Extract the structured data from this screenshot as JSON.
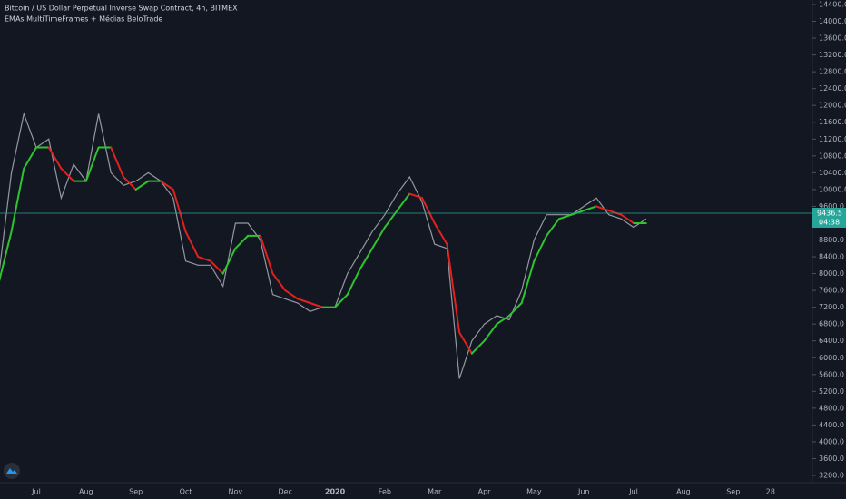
{
  "header": {
    "symbol": "Bitcoin / US Dollar Perpetual Inverse Swap Contract, 4h, BITMEX",
    "indicator": "EMAs MultiTimeFrames + Médias BeloTrade"
  },
  "chart_data": {
    "type": "line",
    "categories": [
      null,
      null,
      null,
      "Jul",
      null,
      null,
      null,
      "Aug",
      null,
      null,
      null,
      "Sep",
      null,
      null,
      null,
      "Oct",
      null,
      null,
      null,
      "Nov",
      null,
      null,
      null,
      "Dec",
      null,
      null,
      null,
      "2020",
      null,
      null,
      null,
      "Feb",
      null,
      null,
      null,
      "Mar",
      null,
      null,
      null,
      "Apr",
      null,
      null,
      null,
      "May",
      null,
      null,
      null,
      "Jun",
      null,
      null,
      null,
      "Jul",
      null,
      null,
      null,
      "Aug",
      null,
      null,
      null,
      "Sep",
      null,
      null,
      "28",
      null,
      null,
      null
    ],
    "series": [
      {
        "color": "#9598a1",
        "values": [
          8000,
          10400,
          11800,
          11000,
          11200,
          9800,
          10600,
          10200,
          11800,
          10400,
          10100,
          10200,
          10400,
          10200,
          9800,
          8300,
          8200,
          8200,
          7700,
          9200,
          9200,
          8800,
          7500,
          7400,
          7300,
          7100,
          7200,
          7200,
          8000,
          8500,
          9000,
          9400,
          9900,
          10300,
          9700,
          8700,
          8600,
          5500,
          6400,
          6800,
          7000,
          6900,
          7600,
          8800,
          9400,
          9400,
          9400,
          9600,
          9800,
          9400,
          9300,
          9100,
          9300,
          null,
          null,
          null,
          null,
          null,
          null,
          null,
          null,
          null,
          null,
          null,
          null,
          null
        ]
      },
      {
        "up_color": "#2dc42d",
        "down_color": "#e0211f",
        "values": [
          7800,
          9000,
          10500,
          11000,
          11000,
          10500,
          10200,
          10200,
          11000,
          11000,
          10300,
          10000,
          10200,
          10200,
          10000,
          9000,
          8400,
          8300,
          8000,
          8600,
          8900,
          8900,
          8000,
          7600,
          7400,
          7300,
          7200,
          7200,
          7500,
          8100,
          8600,
          9100,
          9500,
          9900,
          9800,
          9200,
          8700,
          6600,
          6100,
          6400,
          6800,
          7000,
          7300,
          8300,
          8900,
          9300,
          9400,
          9500,
          9600,
          9500,
          9400,
          9200,
          9200,
          null,
          null,
          null,
          null,
          null,
          null,
          null,
          null,
          null,
          null,
          null,
          null,
          null
        ]
      }
    ],
    "ylim": [
      3000,
      14600
    ],
    "yticks": [
      {
        "value": 3200,
        "label": "3200.0"
      },
      {
        "value": 3600,
        "label": "3600.0"
      },
      {
        "value": 4000,
        "label": "4000.0"
      },
      {
        "value": 4400,
        "label": "4400.0"
      },
      {
        "value": 4800,
        "label": "4800.0"
      },
      {
        "value": 5200,
        "label": "5200.0"
      },
      {
        "value": 5600,
        "label": "5600.0"
      },
      {
        "value": 6000,
        "label": "6000.0"
      },
      {
        "value": 6400,
        "label": "6400.0"
      },
      {
        "value": 6800,
        "label": "6800.0"
      },
      {
        "value": 7200,
        "label": "7200.0"
      },
      {
        "value": 7600,
        "label": "7600.0"
      },
      {
        "value": 8000,
        "label": "8000.0"
      },
      {
        "value": 8400,
        "label": "8400.0"
      },
      {
        "value": 8800,
        "label": "8800.0"
      },
      {
        "value": 9200,
        "label": "9200.0"
      },
      {
        "value": 9600,
        "label": "9600.0"
      },
      {
        "value": 10000,
        "label": "10000.0"
      },
      {
        "value": 10400,
        "label": "10400.0"
      },
      {
        "value": 10800,
        "label": "10800.0"
      },
      {
        "value": 11200,
        "label": "11200.0"
      },
      {
        "value": 11600,
        "label": "11600.0"
      },
      {
        "value": 12000,
        "label": "12000.0"
      },
      {
        "value": 12400,
        "label": "12400.0"
      },
      {
        "value": 12800,
        "label": "12800.0"
      },
      {
        "value": 13200,
        "label": "13200.0"
      },
      {
        "value": 13600,
        "label": "13600.0"
      },
      {
        "value": 14000,
        "label": "14000.0"
      },
      {
        "value": 14400,
        "label": "14400.0"
      }
    ],
    "last_price": 9436.5,
    "last_price_color": "#26a69a",
    "countdown": "04:38"
  }
}
